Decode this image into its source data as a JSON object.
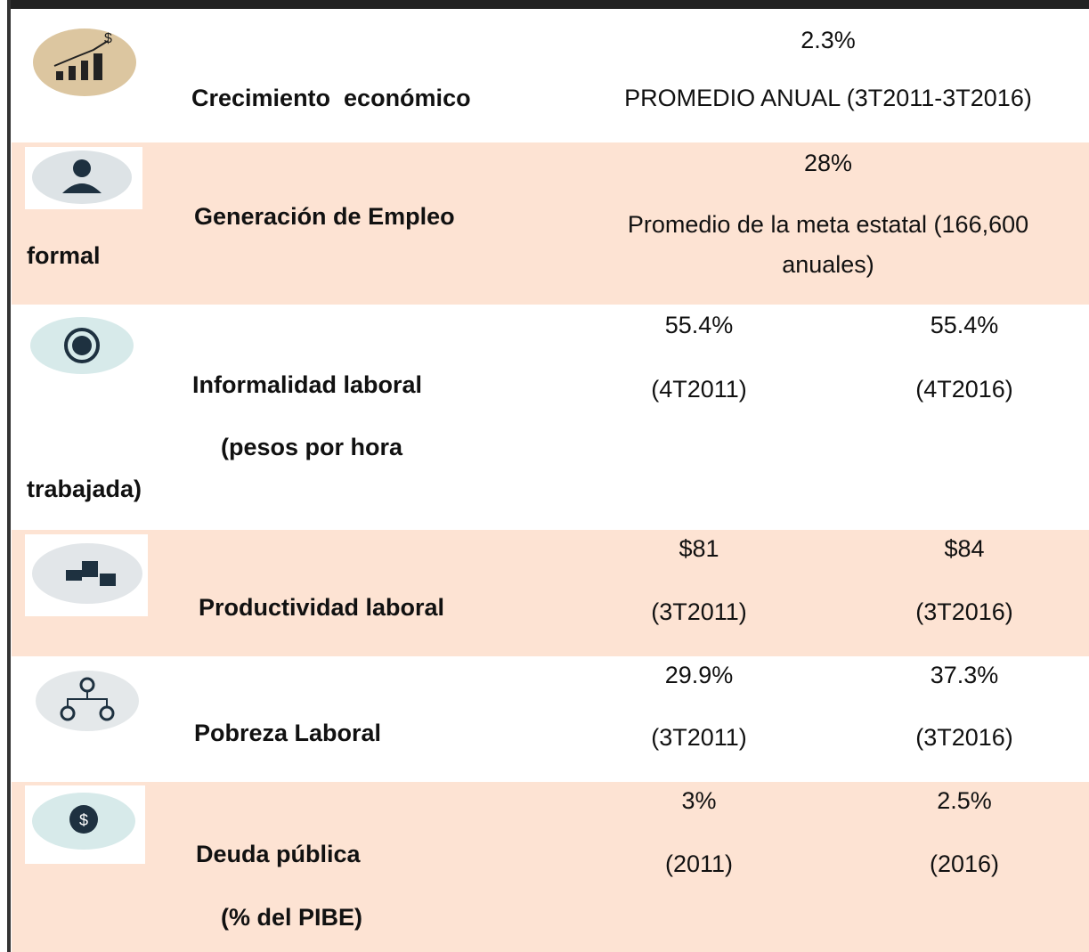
{
  "table": {
    "rows": [
      {
        "indicator": [
          "Crecimiento  económico"
        ],
        "value": "2.3%",
        "note": "PROMEDIO ANUAL (3T2011-3T2016)"
      },
      {
        "indicator": [
          "Generación de Empleo",
          "formal"
        ],
        "value": "28%",
        "note": "Promedio de la meta estatal (166,600 anuales)"
      },
      {
        "indicator": [
          "Informalidad laboral",
          "(pesos por hora",
          "trabajada)"
        ],
        "cells": [
          {
            "value": "55.4%",
            "period": "(4T2011)"
          },
          {
            "value": "55.4%",
            "period": "(4T2016)"
          }
        ]
      },
      {
        "indicator": [
          "Productividad laboral"
        ],
        "cells": [
          {
            "value": "$81",
            "period": "(3T2011)"
          },
          {
            "value": "$84",
            "period": "(3T2016)"
          }
        ]
      },
      {
        "indicator": [
          "Pobreza Laboral"
        ],
        "cells": [
          {
            "value": "29.9%",
            "period": "(3T2011)"
          },
          {
            "value": "37.3%",
            "period": "(3T2016)"
          }
        ]
      },
      {
        "indicator": [
          "Deuda pública",
          "(% del PIBE)"
        ],
        "cells": [
          {
            "value": "3%",
            "period": "(2011)"
          },
          {
            "value": "2.5%",
            "period": "(2016)"
          }
        ]
      }
    ]
  }
}
